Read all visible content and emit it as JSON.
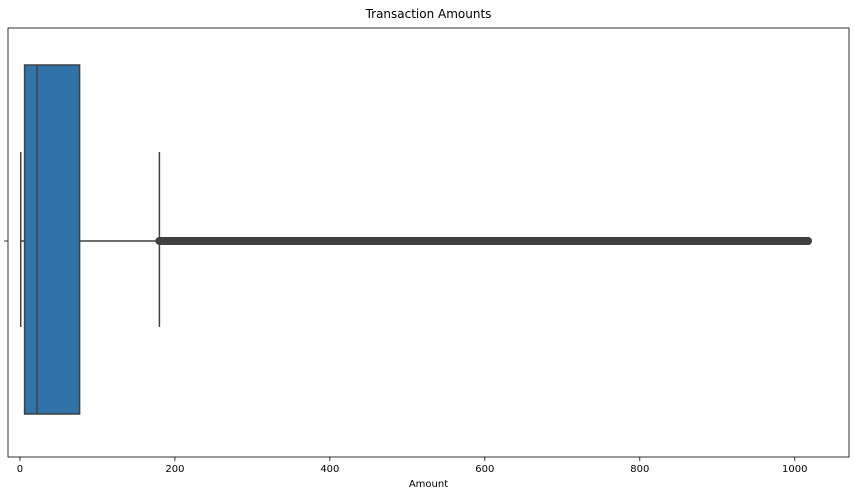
{
  "chart_data": {
    "type": "box",
    "orientation": "horizontal",
    "title": "Transaction Amounts",
    "xlabel": "Amount",
    "ylabel": "",
    "xlim": [
      -15.4,
      1070
    ],
    "xticks": [
      0,
      200,
      400,
      600,
      800,
      1000
    ],
    "xtick_labels": [
      "0",
      "200",
      "400",
      "600",
      "800",
      "1000"
    ],
    "grid": false,
    "box": {
      "whisker_low": 1,
      "q1": 6,
      "median": 22,
      "q3": 77,
      "whisker_high": 180,
      "outliers_range": [
        180,
        1017
      ],
      "color": "#2f73a8",
      "line_color": "#404040"
    }
  }
}
